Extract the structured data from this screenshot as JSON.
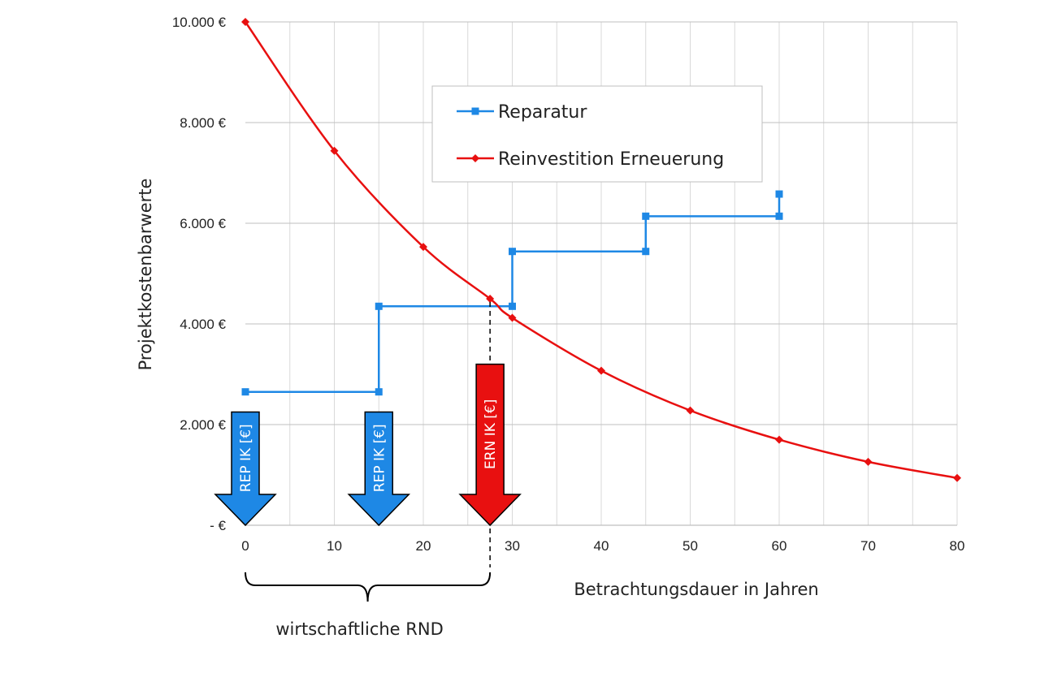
{
  "chart_data": {
    "type": "line",
    "xlabel": "Betrachtungsdauer in Jahren",
    "ylabel": "Projektkostenbarwerte",
    "xlim": [
      0,
      80
    ],
    "ylim": [
      0,
      10000
    ],
    "x_ticks": [
      0,
      10,
      20,
      30,
      40,
      50,
      60,
      70,
      80
    ],
    "x_tick_labels": [
      "0",
      "10",
      "20",
      "30",
      "40",
      "50",
      "60",
      "70",
      "80"
    ],
    "y_ticks": [
      0,
      2000,
      4000,
      6000,
      8000,
      10000
    ],
    "y_tick_labels": [
      "-   €",
      "2.000 €",
      "4.000 €",
      "6.000 €",
      "8.000 €",
      "10.000 €"
    ],
    "grid": true,
    "legend_position": "top-center",
    "colors": {
      "reparatur": "#1e88e5",
      "erneuerung": "#e81010"
    },
    "series": [
      {
        "name": "Reparatur",
        "style": "step",
        "marker": "square",
        "points": [
          [
            0,
            2650
          ],
          [
            15,
            2650
          ],
          [
            15,
            4350
          ],
          [
            30,
            4350
          ],
          [
            30,
            5440
          ],
          [
            45,
            5440
          ],
          [
            45,
            6140
          ],
          [
            60,
            6140
          ],
          [
            60,
            6580
          ]
        ]
      },
      {
        "name": "Reinvestition Erneuerung",
        "style": "smooth",
        "marker": "diamond",
        "points": [
          [
            0,
            10000
          ],
          [
            10,
            7440
          ],
          [
            20,
            5530
          ],
          [
            27.5,
            4500
          ],
          [
            30,
            4120
          ],
          [
            40,
            3070
          ],
          [
            50,
            2280
          ],
          [
            60,
            1700
          ],
          [
            70,
            1260
          ],
          [
            80,
            940
          ]
        ]
      }
    ],
    "annotations": {
      "crossover_x": 27.5,
      "arrows": [
        {
          "label": "REP IK [€]",
          "x": 0,
          "value": 2250,
          "color": "#1e88e5"
        },
        {
          "label": "REP IK [€]",
          "x": 15,
          "value": 2250,
          "color": "#1e88e5"
        },
        {
          "label": "ERN IK [€]",
          "x": 27.5,
          "value": 3200,
          "color": "#e81010"
        }
      ],
      "brace": {
        "from": 0,
        "to": 27.5,
        "label": "wirtschaftliche RND"
      }
    }
  }
}
